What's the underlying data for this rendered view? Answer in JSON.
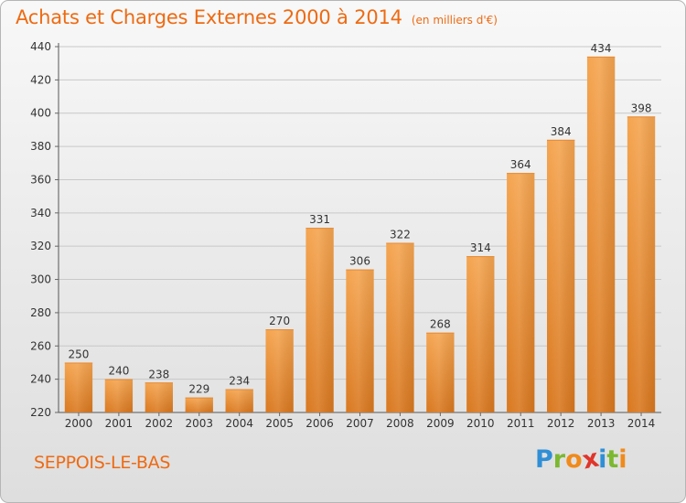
{
  "title": "Achats et Charges Externes 2000 à 2014",
  "subtitle": "(en milliers d'€)",
  "commune": "SEPPOIS-LE-BAS",
  "logo": {
    "letters": [
      "P",
      "r",
      "o",
      "x",
      "i",
      "t",
      "i"
    ],
    "colors": [
      "#2f8fd6",
      "#7cb830",
      "#f08a1a",
      "#e0352b",
      "#2f8fd6",
      "#7cb830",
      "#f08a1a"
    ]
  },
  "colors": {
    "accent": "#ee6a12",
    "bar_light": "#f5a550",
    "bar_dark": "#d9781f"
  },
  "chart_data": {
    "type": "bar",
    "categories": [
      "2000",
      "2001",
      "2002",
      "2003",
      "2004",
      "2005",
      "2006",
      "2007",
      "2008",
      "2009",
      "2010",
      "2011",
      "2012",
      "2013",
      "2014"
    ],
    "values": [
      250,
      240,
      238,
      229,
      234,
      270,
      331,
      306,
      322,
      268,
      314,
      364,
      384,
      434,
      398
    ],
    "ylim": [
      220,
      440
    ],
    "yticks": [
      220,
      240,
      260,
      280,
      300,
      320,
      340,
      360,
      380,
      400,
      420,
      440
    ],
    "grid": true,
    "legend": "none"
  }
}
